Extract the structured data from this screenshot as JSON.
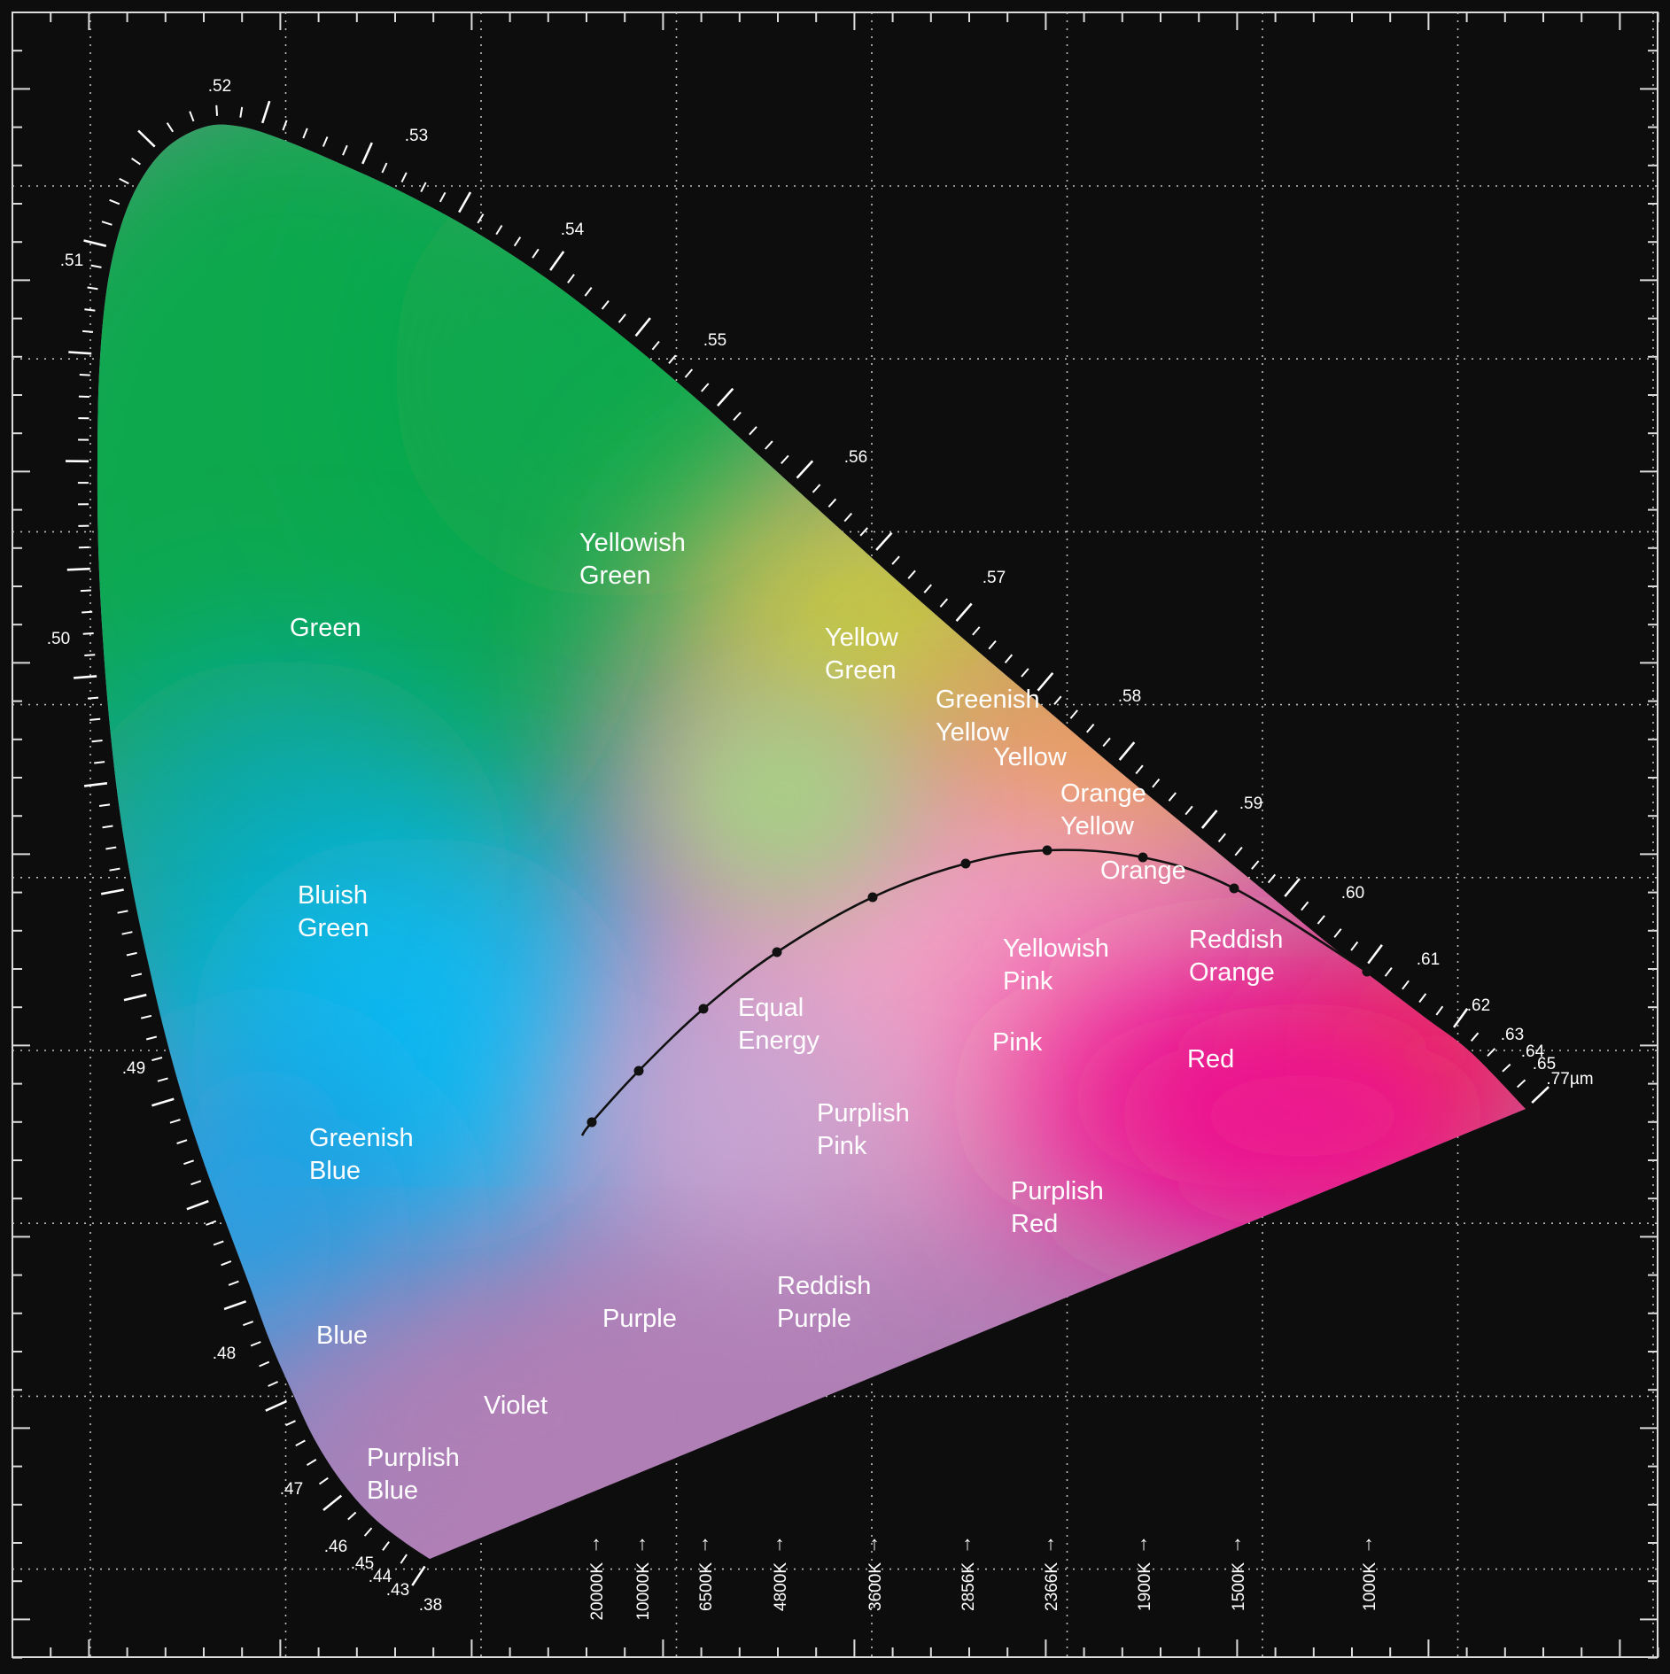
{
  "diagram": {
    "type": "chromaticity-diagram",
    "grid": true,
    "wavelength_labels": [
      ".38",
      ".43",
      ".44",
      ".45",
      ".46",
      ".47",
      ".48",
      ".49",
      ".50",
      ".51",
      ".52",
      ".53",
      ".54",
      ".55",
      ".56",
      ".57",
      ".58",
      ".59",
      ".60",
      ".61",
      ".62",
      ".63",
      ".64",
      ".65",
      ".77µm"
    ],
    "region_labels": [
      {
        "key": "green",
        "lines": [
          "Green"
        ]
      },
      {
        "key": "yellowish-green",
        "lines": [
          "Yellowish",
          "Green"
        ]
      },
      {
        "key": "yellow-green",
        "lines": [
          "Yellow",
          "Green"
        ]
      },
      {
        "key": "greenish-yellow",
        "lines": [
          "Greenish",
          "Yellow"
        ]
      },
      {
        "key": "yellow",
        "lines": [
          "Yellow"
        ]
      },
      {
        "key": "orange-yellow",
        "lines": [
          "Orange",
          "Yellow"
        ]
      },
      {
        "key": "orange",
        "lines": [
          "Orange"
        ]
      },
      {
        "key": "reddish-orange",
        "lines": [
          "Reddish",
          "Orange"
        ]
      },
      {
        "key": "red",
        "lines": [
          "Red"
        ]
      },
      {
        "key": "yellowish-pink",
        "lines": [
          "Yellowish",
          "Pink"
        ]
      },
      {
        "key": "pink",
        "lines": [
          "Pink"
        ]
      },
      {
        "key": "purplish-pink",
        "lines": [
          "Purplish",
          "Pink"
        ]
      },
      {
        "key": "purplish-red",
        "lines": [
          "Purplish",
          "Red"
        ]
      },
      {
        "key": "reddish-purple",
        "lines": [
          "Reddish",
          "Purple"
        ]
      },
      {
        "key": "purple",
        "lines": [
          "Purple"
        ]
      },
      {
        "key": "violet",
        "lines": [
          "Violet"
        ]
      },
      {
        "key": "purplish-blue",
        "lines": [
          "Purplish",
          "Blue"
        ]
      },
      {
        "key": "blue",
        "lines": [
          "Blue"
        ]
      },
      {
        "key": "greenish-blue",
        "lines": [
          "Greenish",
          "Blue"
        ]
      },
      {
        "key": "bluish-green",
        "lines": [
          "Bluish",
          "Green"
        ]
      },
      {
        "key": "equal-energy",
        "lines": [
          "Equal",
          "Energy"
        ]
      }
    ],
    "color_temperatures": [
      "20000K",
      "10000K",
      "6500K",
      "4800K",
      "3600K",
      "2856K",
      "2366K",
      "1900K",
      "1500K",
      "1000K"
    ],
    "arrow_glyph": "↑",
    "colors": {
      "background": "#0d0d0d",
      "green": "#0fa84e",
      "teal": "#11a7a8",
      "cyan": "#0fb9f1",
      "blue": "#1aa0e3",
      "violet": "#b07fb6",
      "magenta": "#ec1490",
      "red": "#ef2b43",
      "orange": "#f7a32c",
      "yellow": "#c4cc3d",
      "pink": "#f3a2c3",
      "locus": "#111111",
      "text": "#ffffff"
    }
  }
}
